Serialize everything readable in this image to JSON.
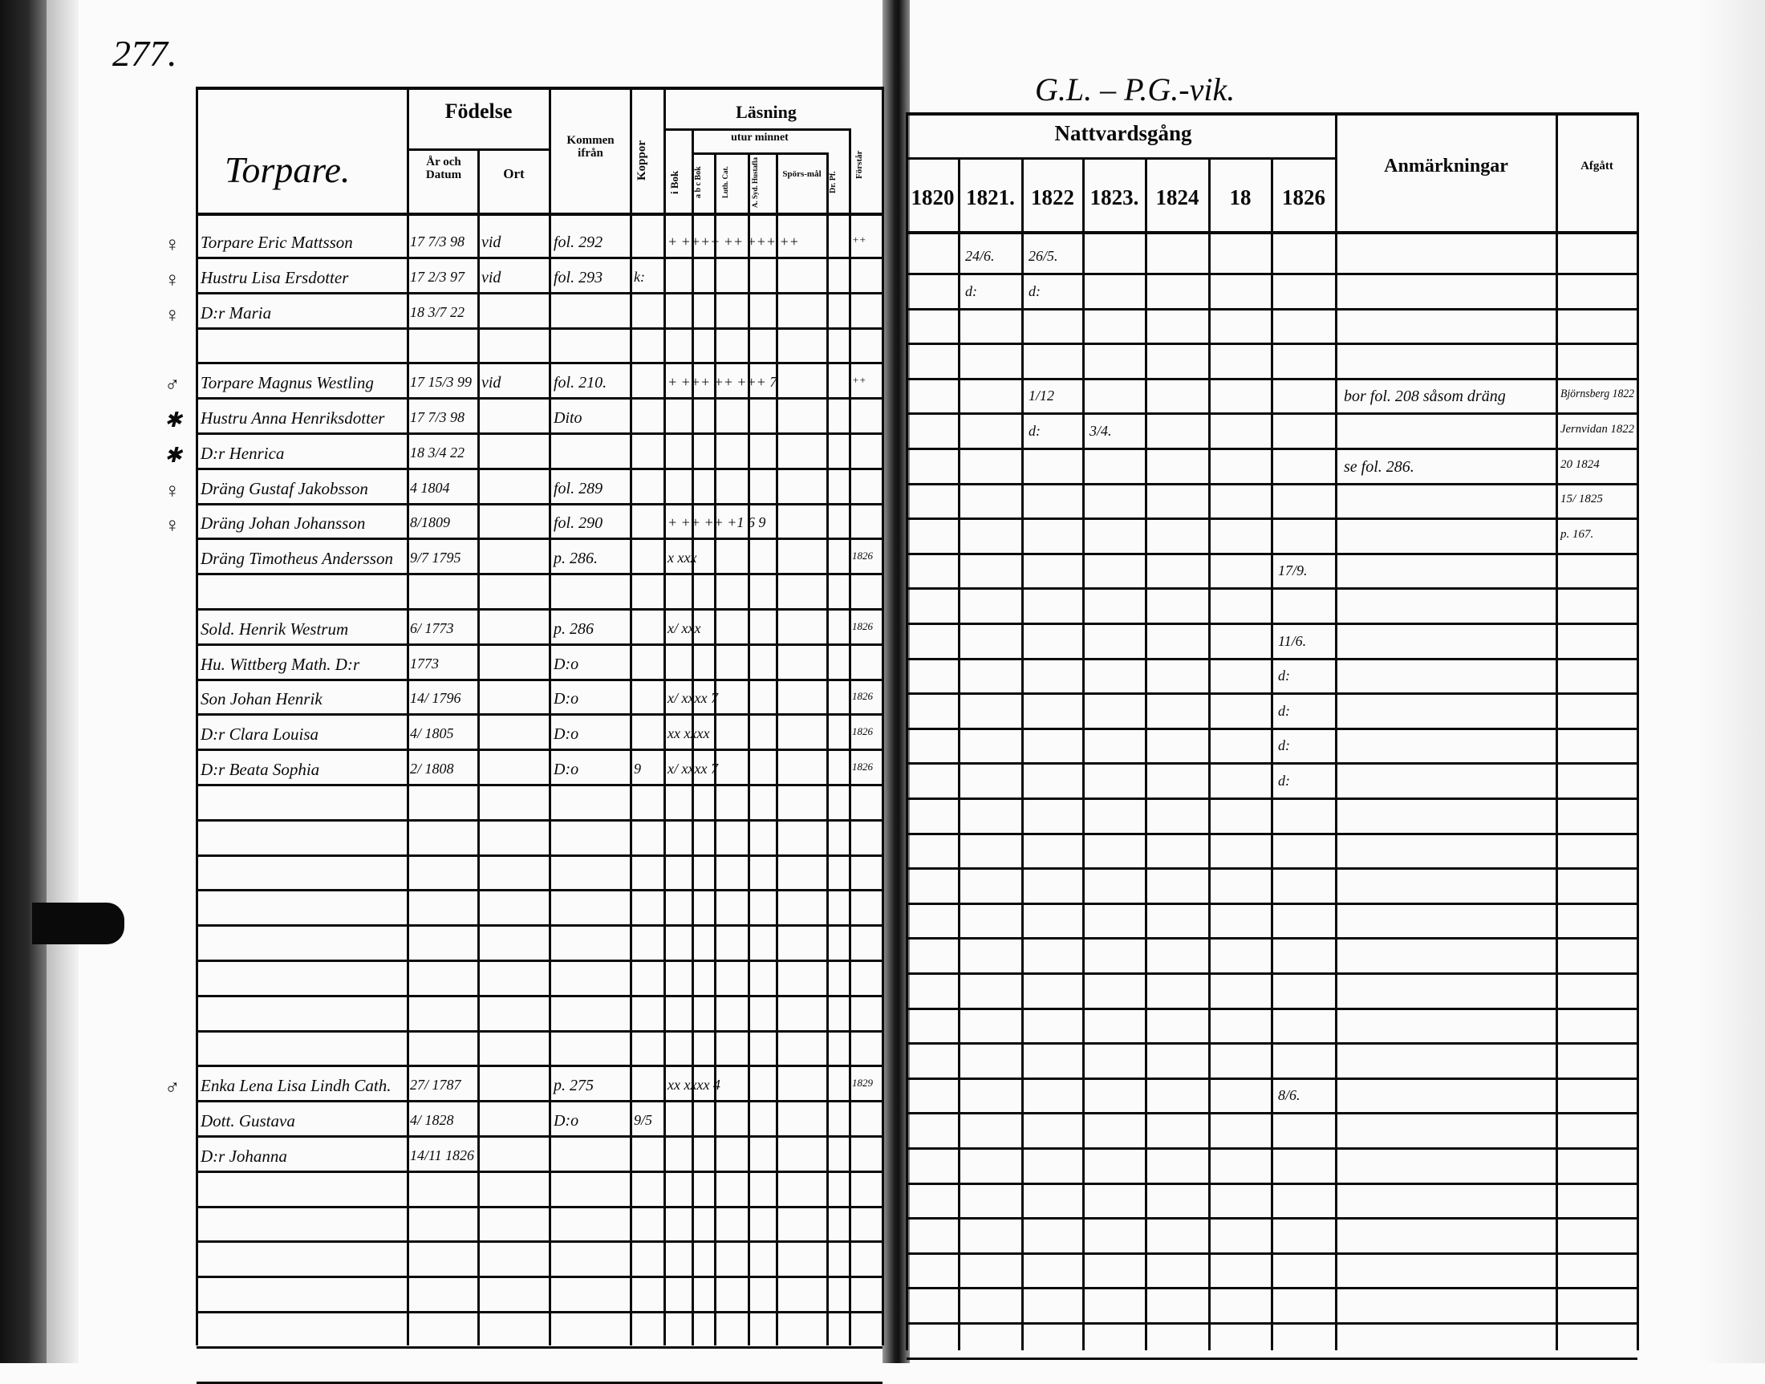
{
  "page_number": "277.",
  "top_note": "G.L. – P.G.-vik.",
  "left_page": {
    "title": "Torpare.",
    "headers": {
      "fodelse": "Födelse",
      "ar_och_datum": "År och Datum",
      "ort": "Ort",
      "kommen_ifran": "Kommen ifrån",
      "koppor": "Koppor",
      "lasning": "Läsning",
      "utur_minnet": "utur minnet",
      "i_bok": "i Bok",
      "abc_bok": "a b c Bok",
      "luth_cat": "Luth. Cat.",
      "hustafla": "A. Syd. Hustafla",
      "sporsmal": "Spörs-mål",
      "dr_pf": "Dr. Pf.",
      "forstar": "Förstår"
    },
    "rows": [
      {
        "row": 0,
        "mark": "♀",
        "name": "Torpare Eric Mattsson",
        "date": "17 7/3 98",
        "ort": "vid",
        "from": "fol. 292",
        "reading": "+ ++++ ++ +++ ++",
        "forstar": "++"
      },
      {
        "row": 1,
        "mark": "♀",
        "name": "Hustru Lisa Ersdotter",
        "date": "17 2/3 97",
        "ort": "vid",
        "from": "fol. 293",
        "koppor": "k:"
      },
      {
        "row": 2,
        "mark": "♀",
        "name": "D:r Maria",
        "date": "18 3/7 22"
      },
      {
        "row": 4,
        "mark": "♂",
        "name": "Torpare Magnus Westling",
        "date": "17 15/3 99",
        "ort": "vid",
        "from": "fol. 210.",
        "reading": "+ +++ ++ +++ 7",
        "forstar": "++"
      },
      {
        "row": 5,
        "mark": "✱",
        "name": "Hustru Anna Henriksdotter",
        "date": "17 7/3 98",
        "from": "Dito"
      },
      {
        "row": 6,
        "mark": "✱",
        "name": "D:r Henrica",
        "date": "18 3/4 22"
      },
      {
        "row": 7,
        "mark": "♀",
        "name": "Dräng Gustaf Jakobsson",
        "date": "4 1804",
        "from": "fol. 289"
      },
      {
        "row": 8,
        "mark": "♀",
        "name": "Dräng Johan Johansson",
        "date": "8/1809",
        "from": "fol. 290",
        "reading": "+ ++ ++ +1 6 9"
      },
      {
        "row": 9,
        "name": "Dräng Timotheus Andersson",
        "date": "9/7 1795",
        "from": "p. 286.",
        "reading": "x  xxx",
        "forstar": "1826"
      },
      {
        "row": 11,
        "name": "Sold. Henrik Westrum",
        "date": "6/ 1773",
        "from": "p. 286",
        "reading": "x/  xxx",
        "forstar": "1826"
      },
      {
        "row": 12,
        "name": "Hu. Wittberg Math. D:r",
        "date": "1773",
        "from": "D:o"
      },
      {
        "row": 13,
        "name": "Son Johan Henrik",
        "date": "14/ 1796",
        "from": "D:o",
        "reading": "x/      xxxx 7",
        "forstar": "1826"
      },
      {
        "row": 14,
        "name": "D:r Clara Louisa",
        "date": "4/ 1805",
        "from": "D:o",
        "reading": "xx      xxxx",
        "forstar": "1826"
      },
      {
        "row": 15,
        "name": "D:r Beata Sophia",
        "date": "2/ 1808",
        "from": "D:o",
        "koppor": "9",
        "reading": "x/      xxxx 7",
        "forstar": "1826"
      },
      {
        "row": 24,
        "mark": "♂",
        "name": "Enka Lena Lisa Lindh Cath.",
        "date": "27/ 1787",
        "from": "p. 275",
        "reading": "xx      xxxx 4",
        "forstar": "1829"
      },
      {
        "row": 25,
        "name": "Dott. Gustava",
        "date": "4/ 1828",
        "from": "D:o",
        "koppor": "9/5"
      },
      {
        "row": 26,
        "name": "D:r Johanna",
        "date": "14/11 1826"
      }
    ]
  },
  "right_page": {
    "headers": {
      "nattvardsgang": "Nattvardsgång",
      "years": [
        "1820",
        "1821.",
        "1822",
        "1823.",
        "1824",
        "18",
        "1826"
      ],
      "anmarkningar": "Anmärkningar",
      "afgatt": "Afgått"
    },
    "rows": [
      {
        "row": 0,
        "c1": "24/6.",
        "c2": "26/5."
      },
      {
        "row": 1,
        "c1": "d:",
        "c2": "d:"
      },
      {
        "row": 4,
        "c2": "1/12",
        "note": "bor fol. 208 såsom dräng",
        "afgatt": "Björnsberg 1822"
      },
      {
        "row": 5,
        "c2": "d:",
        "c3": "3/4.",
        "afgatt": "Jernvidan 1822"
      },
      {
        "row": 6,
        "note": "se fol. 286.",
        "afgatt": "20 1824"
      },
      {
        "row": 7,
        "afgatt": "15/ 1825"
      },
      {
        "row": 8,
        "afgatt": "p. 167."
      },
      {
        "row": 9,
        "c6": "17/9."
      },
      {
        "row": 11,
        "c6": "11/6."
      },
      {
        "row": 12,
        "c6": "d:"
      },
      {
        "row": 13,
        "c6": "d:"
      },
      {
        "row": 14,
        "c6": "d:"
      },
      {
        "row": 15,
        "c6": "d:"
      },
      {
        "row": 24,
        "c6": "8/6."
      }
    ]
  }
}
